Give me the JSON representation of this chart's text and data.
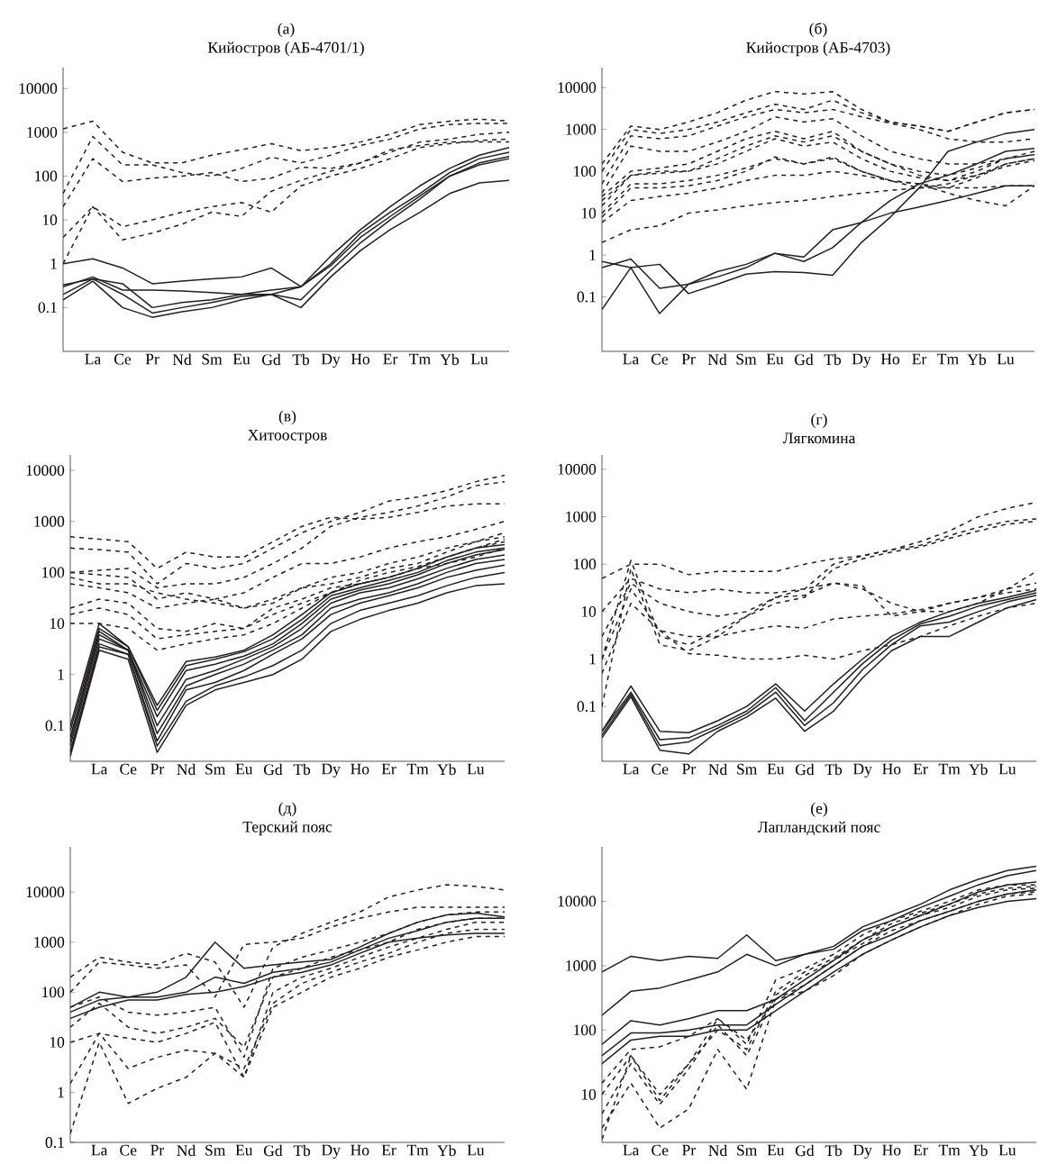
{
  "chart_data": [
    {
      "type": "line",
      "title": "(а)",
      "subtitle": "Кийостров (АБ-4701/1)",
      "categories": [
        null,
        "La",
        "Ce",
        "Pr",
        "Nd",
        "Sm",
        "Eu",
        "Gd",
        "Tb",
        "Dy",
        "Ho",
        "Er",
        "Tm",
        "Yb",
        "Lu",
        null
      ],
      "log": "y",
      "ylim": [
        0.01,
        30000
      ],
      "yticks": [
        0.1,
        1,
        10,
        100,
        1000,
        10000
      ],
      "series": [
        {
          "color": "#231f20",
          "line_style": "dashed",
          "values": [
            1200,
            1800,
            350,
            200,
            200,
            300,
            400,
            550,
            380,
            450,
            600,
            900,
            1500,
            1800,
            2000,
            1800
          ]
        },
        {
          "color": "#231f20",
          "line_style": "dashed",
          "values": [
            40,
            800,
            180,
            180,
            120,
            100,
            150,
            270,
            200,
            300,
            500,
            700,
            1200,
            1500,
            1600,
            1600
          ]
        },
        {
          "color": "#231f20",
          "line_style": "dashed",
          "values": [
            20,
            250,
            75,
            90,
            100,
            120,
            75,
            90,
            160,
            150,
            200,
            350,
            600,
            700,
            900,
            1000
          ]
        },
        {
          "color": "#231f20",
          "line_style": "dashed",
          "values": [
            4,
            20,
            7,
            10,
            15,
            20,
            25,
            15,
            60,
            100,
            150,
            250,
            450,
            550,
            650,
            700
          ]
        },
        {
          "color": "#231f20",
          "line_style": "dashed",
          "values": [
            1,
            20,
            3.5,
            5,
            8,
            15,
            12,
            45,
            80,
            130,
            200,
            400,
            500,
            600,
            600,
            600
          ]
        },
        {
          "color": "#231f20",
          "line_style": "solid",
          "values": [
            1,
            1.3,
            0.8,
            0.35,
            0.4,
            0.45,
            0.5,
            0.8,
            0.3,
            1.5,
            6,
            20,
            60,
            150,
            300,
            450
          ]
        },
        {
          "color": "#231f20",
          "line_style": "solid",
          "values": [
            0.33,
            0.45,
            0.35,
            0.1,
            0.13,
            0.15,
            0.2,
            0.25,
            0.3,
            1,
            5,
            15,
            40,
            120,
            250,
            350
          ]
        },
        {
          "color": "#231f20",
          "line_style": "solid",
          "values": [
            0.3,
            0.5,
            0.25,
            0.25,
            0.24,
            0.22,
            0.2,
            0.2,
            0.15,
            0.7,
            3,
            10,
            30,
            100,
            200,
            280
          ]
        },
        {
          "color": "#231f20",
          "line_style": "solid",
          "values": [
            0.2,
            0.45,
            0.2,
            0.075,
            0.1,
            0.13,
            0.18,
            0.2,
            0.3,
            0.9,
            4,
            12,
            35,
            100,
            180,
            250
          ]
        },
        {
          "color": "#231f20",
          "line_style": "solid",
          "values": [
            0.15,
            0.4,
            0.1,
            0.06,
            0.08,
            0.1,
            0.15,
            0.2,
            0.1,
            0.5,
            2,
            6,
            15,
            40,
            70,
            80
          ]
        }
      ]
    },
    {
      "type": "line",
      "title": "(б)",
      "subtitle": "Кийостров (АБ-4703)",
      "categories": [
        null,
        "La",
        "Ce",
        "Pr",
        "Nd",
        "Sm",
        "Eu",
        "Gd",
        "Tb",
        "Dy",
        "Ho",
        "Er",
        "Tm",
        "Yb",
        "Lu",
        null
      ],
      "log": "y",
      "ylim": [
        0.005,
        30000
      ],
      "yticks": [
        0.1,
        1,
        10,
        100,
        1000,
        10000
      ],
      "series": [
        {
          "color": "#231f20",
          "line_style": "dashed",
          "values": [
            150,
            1200,
            1000,
            1500,
            2500,
            5000,
            8000,
            7000,
            8000,
            3000,
            1500,
            1200,
            900,
            1500,
            2500,
            3000
          ]
        },
        {
          "color": "#231f20",
          "line_style": "dashed",
          "values": [
            100,
            1000,
            800,
            1000,
            1500,
            2500,
            4000,
            3000,
            5000,
            2500,
            1500,
            1200,
            900,
            1500,
            2500,
            3000
          ]
        },
        {
          "color": "#231f20",
          "line_style": "dashed",
          "values": [
            50,
            700,
            600,
            700,
            1200,
            2000,
            3000,
            2500,
            3000,
            2000,
            1400,
            1000,
            600,
            500,
            500,
            600
          ]
        },
        {
          "color": "#231f20",
          "line_style": "dashed",
          "values": [
            30,
            400,
            300,
            300,
            500,
            900,
            2000,
            1500,
            1800,
            700,
            300,
            200,
            150,
            150,
            200,
            250
          ]
        },
        {
          "color": "#231f20",
          "line_style": "dashed",
          "values": [
            25,
            100,
            120,
            150,
            300,
            600,
            900,
            600,
            900,
            300,
            150,
            100,
            80,
            120,
            200,
            300
          ]
        },
        {
          "color": "#231f20",
          "line_style": "dashed",
          "values": [
            20,
            80,
            100,
            100,
            200,
            400,
            700,
            500,
            700,
            300,
            150,
            80,
            60,
            100,
            200,
            250
          ]
        },
        {
          "color": "#231f20",
          "line_style": "dashed",
          "values": [
            15,
            80,
            90,
            100,
            150,
            300,
            600,
            400,
            500,
            200,
            100,
            70,
            60,
            80,
            150,
            200
          ]
        },
        {
          "color": "#231f20",
          "line_style": "dashed",
          "values": [
            10,
            50,
            50,
            60,
            80,
            120,
            200,
            150,
            200,
            100,
            60,
            50,
            40,
            70,
            150,
            200
          ]
        },
        {
          "color": "#231f20",
          "line_style": "dashed",
          "values": [
            8,
            40,
            40,
            45,
            60,
            100,
            220,
            150,
            220,
            100,
            60,
            40,
            50,
            80,
            130,
            180
          ]
        },
        {
          "color": "#231f20",
          "line_style": "dashed",
          "values": [
            6,
            20,
            25,
            30,
            40,
            60,
            80,
            80,
            100,
            80,
            60,
            50,
            30,
            20,
            15,
            45
          ]
        },
        {
          "color": "#231f20",
          "line_style": "dashed",
          "values": [
            2,
            4,
            5,
            10,
            12,
            15,
            18,
            20,
            25,
            30,
            35,
            40,
            40,
            40,
            45,
            45
          ]
        },
        {
          "color": "#231f20",
          "line_style": "solid",
          "values": [
            0.5,
            0.8,
            0.16,
            0.2,
            0.3,
            0.5,
            1.1,
            0.7,
            1.5,
            6,
            20,
            50,
            80,
            150,
            300,
            350
          ]
        },
        {
          "color": "#231f20",
          "line_style": "solid",
          "values": [
            0.7,
            0.5,
            0.6,
            0.12,
            0.2,
            0.35,
            0.4,
            0.38,
            0.33,
            2,
            8,
            40,
            300,
            500,
            800,
            1000
          ]
        },
        {
          "color": "#231f20",
          "line_style": "solid",
          "values": [
            0.05,
            0.5,
            0.04,
            0.2,
            0.4,
            0.6,
            1.1,
            0.9,
            4,
            6,
            10,
            14,
            20,
            30,
            45,
            45
          ]
        }
      ]
    },
    {
      "type": "line",
      "title": "(в)",
      "subtitle": "Хитоостров",
      "categories": [
        null,
        "La",
        "Ce",
        "Pr",
        "Nd",
        "Sm",
        "Eu",
        "Gd",
        "Tb",
        "Dy",
        "Ho",
        "Er",
        "Tm",
        "Yb",
        "Lu",
        null
      ],
      "log": "y",
      "ylim": [
        0.02,
        20000
      ],
      "yticks": [
        0.1,
        1,
        10,
        100,
        1000,
        10000
      ],
      "series": [
        {
          "color": "#231f20",
          "line_style": "dashed",
          "values": [
            500,
            450,
            400,
            120,
            250,
            200,
            200,
            400,
            800,
            1200,
            1100,
            1200,
            1500,
            2000,
            2200,
            2200
          ]
        },
        {
          "color": "#231f20",
          "line_style": "dashed",
          "values": [
            300,
            280,
            250,
            60,
            150,
            120,
            150,
            300,
            600,
            1000,
            1500,
            2500,
            3000,
            4000,
            6000,
            8000
          ]
        },
        {
          "color": "#231f20",
          "line_style": "dashed",
          "values": [
            100,
            110,
            120,
            50,
            60,
            60,
            80,
            150,
            300,
            800,
            1200,
            1500,
            2000,
            3000,
            5000,
            6000
          ]
        },
        {
          "color": "#231f20",
          "line_style": "dashed",
          "values": [
            100,
            90,
            80,
            30,
            40,
            30,
            40,
            80,
            150,
            150,
            200,
            300,
            400,
            500,
            700,
            1000
          ]
        },
        {
          "color": "#231f20",
          "line_style": "dashed",
          "values": [
            80,
            60,
            60,
            40,
            30,
            25,
            20,
            30,
            50,
            80,
            100,
            150,
            200,
            300,
            400,
            600
          ]
        },
        {
          "color": "#231f20",
          "line_style": "dashed",
          "values": [
            60,
            50,
            40,
            20,
            25,
            30,
            20,
            25,
            50,
            60,
            80,
            120,
            150,
            250,
            400,
            500
          ]
        },
        {
          "color": "#231f20",
          "line_style": "dashed",
          "values": [
            20,
            30,
            25,
            8,
            7,
            10,
            8,
            20,
            30,
            50,
            60,
            80,
            120,
            200,
            300,
            400
          ]
        },
        {
          "color": "#231f20",
          "line_style": "dashed",
          "values": [
            10,
            10,
            8,
            3,
            4,
            5,
            6,
            10,
            20,
            40,
            60,
            80,
            120,
            150,
            200,
            300
          ]
        },
        {
          "color": "#231f20",
          "line_style": "dashed",
          "values": [
            15,
            20,
            15,
            5,
            6,
            7,
            8,
            15,
            25,
            40,
            70,
            100,
            130,
            200,
            300,
            450
          ]
        },
        {
          "color": "#231f20",
          "line_style": "solid",
          "values": [
            0.1,
            10,
            3.5,
            0.25,
            1.8,
            2.2,
            3,
            6,
            15,
            40,
            60,
            80,
            120,
            200,
            300,
            350
          ]
        },
        {
          "color": "#231f20",
          "line_style": "solid",
          "values": [
            0.08,
            8,
            3.5,
            0.2,
            1.5,
            2,
            2.8,
            5,
            12,
            35,
            50,
            70,
            100,
            170,
            250,
            300
          ]
        },
        {
          "color": "#231f20",
          "line_style": "solid",
          "values": [
            0.06,
            7,
            3,
            0.15,
            1.2,
            1.6,
            2.3,
            4,
            10,
            30,
            45,
            60,
            90,
            150,
            220,
            280
          ]
        },
        {
          "color": "#231f20",
          "line_style": "solid",
          "values": [
            0.05,
            6,
            3,
            0.1,
            0.8,
            1.2,
            2,
            3.5,
            8,
            25,
            40,
            50,
            75,
            120,
            180,
            220
          ]
        },
        {
          "color": "#231f20",
          "line_style": "solid",
          "values": [
            0.04,
            5,
            3,
            0.07,
            0.6,
            1,
            1.6,
            3,
            6,
            20,
            30,
            40,
            60,
            100,
            150,
            180
          ]
        },
        {
          "color": "#231f20",
          "line_style": "solid",
          "values": [
            0.03,
            4,
            2.5,
            0.05,
            0.5,
            0.7,
            1.2,
            2.5,
            5,
            15,
            25,
            35,
            50,
            80,
            110,
            140
          ]
        },
        {
          "color": "#231f20",
          "line_style": "solid",
          "values": [
            0.03,
            3.5,
            2.5,
            0.04,
            0.3,
            0.6,
            0.9,
            1.5,
            3,
            10,
            18,
            25,
            35,
            55,
            80,
            100
          ]
        },
        {
          "color": "#231f20",
          "line_style": "solid",
          "values": [
            0.025,
            3,
            2,
            0.03,
            0.25,
            0.5,
            0.7,
            1,
            2,
            7,
            12,
            18,
            25,
            40,
            55,
            60
          ]
        }
      ]
    },
    {
      "type": "line",
      "title": "(г)",
      "subtitle": "Лягкомина",
      "categories": [
        null,
        "La",
        "Ce",
        "Pr",
        "Nd",
        "Sm",
        "Eu",
        "Gd",
        "Tb",
        "Dy",
        "Ho",
        "Er",
        "Tm",
        "Yb",
        "Lu",
        null
      ],
      "log": "y",
      "ylim": [
        0.007,
        20000
      ],
      "yticks": [
        0.1,
        1,
        10,
        100,
        1000,
        10000
      ],
      "series": [
        {
          "color": "#231f20",
          "line_style": "dashed",
          "values": [
            50,
            100,
            100,
            60,
            70,
            70,
            70,
            100,
            130,
            150,
            200,
            300,
            500,
            1000,
            1500,
            2000
          ]
        },
        {
          "color": "#231f20",
          "line_style": "dashed",
          "values": [
            1,
            120,
            3,
            2,
            4,
            8,
            20,
            30,
            100,
            150,
            200,
            250,
            400,
            600,
            800,
            900
          ]
        },
        {
          "color": "#231f20",
          "line_style": "dashed",
          "values": [
            0.1,
            80,
            2,
            1.5,
            3,
            8,
            15,
            20,
            80,
            130,
            180,
            230,
            350,
            500,
            700,
            800
          ]
        },
        {
          "color": "#231f20",
          "line_style": "dashed",
          "values": [
            10,
            50,
            30,
            25,
            30,
            25,
            25,
            30,
            40,
            30,
            15,
            10,
            10,
            15,
            30,
            70
          ]
        },
        {
          "color": "#231f20",
          "line_style": "dashed",
          "values": [
            3,
            40,
            15,
            10,
            8,
            10,
            20,
            22,
            40,
            35,
            8,
            10,
            15,
            20,
            30,
            40
          ]
        },
        {
          "color": "#231f20",
          "line_style": "dashed",
          "values": [
            1,
            30,
            4,
            1.3,
            1.2,
            1,
            1,
            1.2,
            1,
            1.5,
            2,
            3,
            5,
            8,
            12,
            15
          ]
        },
        {
          "color": "#231f20",
          "line_style": "dashed",
          "values": [
            0.5,
            15,
            4,
            3,
            3,
            4,
            5,
            4.5,
            7,
            8,
            9,
            11,
            15,
            20,
            25,
            30
          ]
        },
        {
          "color": "#231f20",
          "line_style": "solid",
          "values": [
            0.03,
            0.27,
            0.03,
            0.028,
            0.05,
            0.1,
            0.3,
            0.08,
            0.3,
            1,
            3,
            6,
            10,
            15,
            20,
            28
          ]
        },
        {
          "color": "#231f20",
          "line_style": "solid",
          "values": [
            0.03,
            0.2,
            0.02,
            0.022,
            0.04,
            0.08,
            0.25,
            0.05,
            0.2,
            0.8,
            2.5,
            5.5,
            8,
            13,
            18,
            25
          ]
        },
        {
          "color": "#231f20",
          "line_style": "solid",
          "values": [
            0.025,
            0.18,
            0.015,
            0.018,
            0.035,
            0.07,
            0.2,
            0.04,
            0.12,
            0.6,
            2,
            5,
            6,
            10,
            16,
            22
          ]
        },
        {
          "color": "#231f20",
          "line_style": "solid",
          "values": [
            0.022,
            0.16,
            0.012,
            0.01,
            0.03,
            0.06,
            0.15,
            0.03,
            0.08,
            0.4,
            1.5,
            3,
            3,
            6,
            12,
            18
          ]
        }
      ]
    },
    {
      "type": "line",
      "title": "(д)",
      "subtitle": "Терский пояс",
      "categories": [
        null,
        "La",
        "Ce",
        "Pr",
        "Nd",
        "Sm",
        "Eu",
        "Gd",
        "Tb",
        "Dy",
        "Ho",
        "Er",
        "Tm",
        "Yb",
        "Lu",
        null
      ],
      "log": "y",
      "ylim": [
        0.1,
        80000
      ],
      "yticks": [
        0.1,
        1,
        10,
        100,
        1000,
        10000
      ],
      "series": [
        {
          "color": "#231f20",
          "line_style": "dashed",
          "values": [
            200,
            500,
            400,
            350,
            600,
            400,
            50,
            800,
            1500,
            2500,
            4000,
            8000,
            11000,
            14000,
            13000,
            11000
          ]
        },
        {
          "color": "#231f20",
          "line_style": "dashed",
          "values": [
            100,
            400,
            350,
            300,
            350,
            80,
            900,
            1000,
            1200,
            2000,
            3000,
            4000,
            5000,
            5000,
            5000,
            5000
          ]
        },
        {
          "color": "#231f20",
          "line_style": "dashed",
          "values": [
            50,
            80,
            40,
            35,
            40,
            50,
            5,
            300,
            500,
            700,
            1000,
            1500,
            2500,
            3500,
            4000,
            4000
          ]
        },
        {
          "color": "#231f20",
          "line_style": "dashed",
          "values": [
            20,
            60,
            20,
            15,
            20,
            30,
            8,
            200,
            300,
            500,
            700,
            1000,
            1800,
            2500,
            3000,
            3000
          ]
        },
        {
          "color": "#231f20",
          "line_style": "dashed",
          "values": [
            10,
            15,
            12,
            10,
            15,
            25,
            2,
            100,
            200,
            300,
            500,
            800,
            1200,
            1800,
            2500,
            2500
          ]
        },
        {
          "color": "#231f20",
          "line_style": "dashed",
          "values": [
            1.5,
            15,
            3,
            5,
            7,
            6,
            3,
            60,
            150,
            250,
            400,
            600,
            1000,
            1500,
            1800,
            1800
          ]
        },
        {
          "color": "#231f20",
          "line_style": "dashed",
          "values": [
            0.15,
            10,
            0.6,
            1.2,
            2,
            6,
            2,
            50,
            100,
            200,
            300,
            500,
            700,
            1000,
            1300,
            1300
          ]
        },
        {
          "color": "#231f20",
          "line_style": "solid",
          "values": [
            50,
            100,
            80,
            100,
            200,
            1000,
            300,
            350,
            400,
            450,
            800,
            1500,
            2500,
            3500,
            3800,
            3200
          ]
        },
        {
          "color": "#231f20",
          "line_style": "solid",
          "values": [
            40,
            70,
            80,
            80,
            100,
            200,
            150,
            250,
            300,
            400,
            700,
            1200,
            1700,
            2500,
            3000,
            3000
          ]
        },
        {
          "color": "#231f20",
          "line_style": "solid",
          "values": [
            30,
            50,
            70,
            70,
            90,
            100,
            130,
            200,
            250,
            350,
            600,
            1000,
            1200,
            1400,
            1500,
            1500
          ]
        }
      ]
    },
    {
      "type": "line",
      "title": "(е)",
      "subtitle": "Лапландский пояс",
      "categories": [
        null,
        "La",
        "Ce",
        "Pr",
        "Nd",
        "Sm",
        "Eu",
        "Gd",
        "Tb",
        "Dy",
        "Ho",
        "Er",
        "Tm",
        "Yb",
        "Lu",
        null
      ],
      "log": "y",
      "ylim": [
        1.8,
        70000
      ],
      "yticks": [
        10,
        100,
        1000,
        10000
      ],
      "series": [
        {
          "color": "#231f20",
          "line_style": "solid",
          "values": [
            800,
            1400,
            1200,
            1400,
            1300,
            3000,
            1200,
            1500,
            2000,
            4000,
            6000,
            9000,
            15000,
            22000,
            30000,
            35000
          ]
        },
        {
          "color": "#231f20",
          "line_style": "solid",
          "values": [
            170,
            400,
            450,
            600,
            800,
            1500,
            1000,
            1500,
            1800,
            3500,
            5000,
            8000,
            12000,
            18000,
            25000,
            30000
          ]
        },
        {
          "color": "#231f20",
          "line_style": "solid",
          "values": [
            60,
            140,
            120,
            150,
            200,
            200,
            300,
            600,
            1200,
            2500,
            4000,
            6000,
            9000,
            14000,
            18000,
            20000
          ]
        },
        {
          "color": "#231f20",
          "line_style": "solid",
          "values": [
            40,
            90,
            90,
            100,
            120,
            120,
            250,
            500,
            1000,
            2000,
            3000,
            5000,
            7000,
            10000,
            13000,
            15000
          ]
        },
        {
          "color": "#231f20",
          "line_style": "solid",
          "values": [
            30,
            70,
            80,
            80,
            100,
            100,
            200,
            400,
            800,
            1500,
            2500,
            4000,
            6000,
            8000,
            10000,
            11000
          ]
        },
        {
          "color": "#231f20",
          "line_style": "dashed",
          "values": [
            15,
            50,
            55,
            80,
            150,
            60,
            600,
            900,
            1500,
            3000,
            5000,
            7000,
            10000,
            15000,
            18000,
            18000
          ]
        },
        {
          "color": "#231f20",
          "line_style": "dashed",
          "values": [
            10,
            40,
            8,
            30,
            100,
            50,
            400,
            800,
            1300,
            2500,
            4500,
            6500,
            9000,
            13000,
            16000,
            17000
          ]
        },
        {
          "color": "#231f20",
          "line_style": "dashed",
          "values": [
            5,
            30,
            7,
            25,
            120,
            40,
            350,
            700,
            1200,
            2200,
            4000,
            6000,
            8000,
            12000,
            15000,
            16000
          ]
        },
        {
          "color": "#231f20",
          "line_style": "dashed",
          "values": [
            3,
            15,
            3,
            6,
            50,
            12,
            300,
            500,
            1000,
            2000,
            3500,
            5000,
            7000,
            10000,
            13000,
            14000
          ]
        },
        {
          "color": "#231f20",
          "line_style": "dashed",
          "values": [
            2,
            40,
            10,
            30,
            150,
            70,
            300,
            400,
            700,
            1500,
            2500,
            4000,
            6000,
            9000,
            12000,
            13000
          ]
        }
      ]
    }
  ]
}
